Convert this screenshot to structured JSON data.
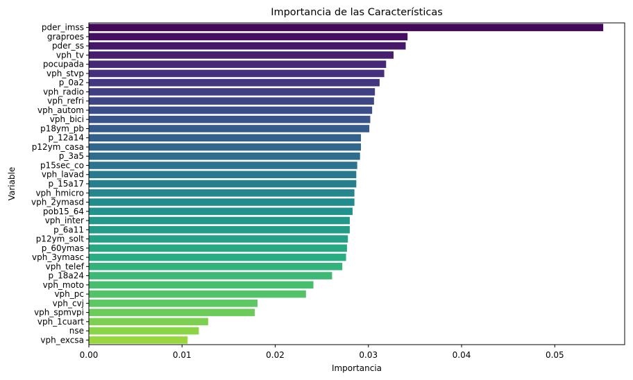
{
  "chart_data": {
    "type": "bar",
    "orientation": "horizontal",
    "title": "Importancia de las Características",
    "xlabel": "Importancia",
    "ylabel": "Variable",
    "xlim": [
      0,
      0.0575
    ],
    "x_ticks": [
      "0.00",
      "0.01",
      "0.02",
      "0.03",
      "0.04",
      "0.05"
    ],
    "x_tick_values": [
      0,
      0.01,
      0.02,
      0.03,
      0.04,
      0.05
    ],
    "grid": false,
    "legend": "none",
    "colormap": "viridis",
    "categories": [
      "pder_imss",
      "graproes",
      "pder_ss",
      "vph_tv",
      "pocupada",
      "vph_stvp",
      "p_0a2",
      "vph_radio",
      "vph_refri",
      "vph_autom",
      "vph_bici",
      "p18ym_pb",
      "p_12a14",
      "p12ym_casa",
      "p_3a5",
      "p15sec_co",
      "vph_lavad",
      "p_15a17",
      "vph_hmicro",
      "vph_2ymasd",
      "pob15_64",
      "vph_inter",
      "p_6a11",
      "p12ym_solt",
      "p_60ymas",
      "vph_3ymasc",
      "vph_telef",
      "p_18a24",
      "vph_moto",
      "vph_pc",
      "vph_cvj",
      "vph_spmvpi",
      "vph_1cuart",
      "nse",
      "vph_excsa"
    ],
    "values": [
      0.0552,
      0.0342,
      0.034,
      0.0327,
      0.0319,
      0.0317,
      0.0312,
      0.0307,
      0.0306,
      0.0304,
      0.0302,
      0.0301,
      0.0292,
      0.0292,
      0.0291,
      0.0288,
      0.0287,
      0.0287,
      0.0285,
      0.0285,
      0.0283,
      0.028,
      0.028,
      0.0278,
      0.0277,
      0.0276,
      0.0272,
      0.0261,
      0.0241,
      0.0233,
      0.0181,
      0.0178,
      0.0128,
      0.0118,
      0.0106
    ]
  }
}
